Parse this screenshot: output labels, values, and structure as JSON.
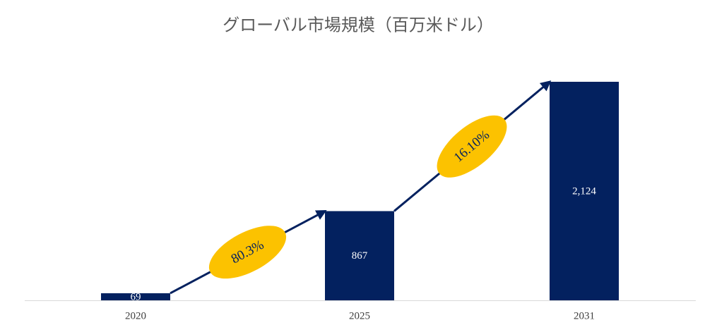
{
  "chart_data": {
    "type": "bar",
    "title": "グローバル市場規模（百万米ドル）",
    "categories": [
      "2020",
      "2025",
      "2031"
    ],
    "values": [
      69,
      867,
      2124
    ],
    "value_labels": [
      "69",
      "867",
      "2,124"
    ],
    "color": "#03215f",
    "annotations": [
      "80.3%",
      "16.10%"
    ],
    "annotation_color": "#fcc200"
  }
}
